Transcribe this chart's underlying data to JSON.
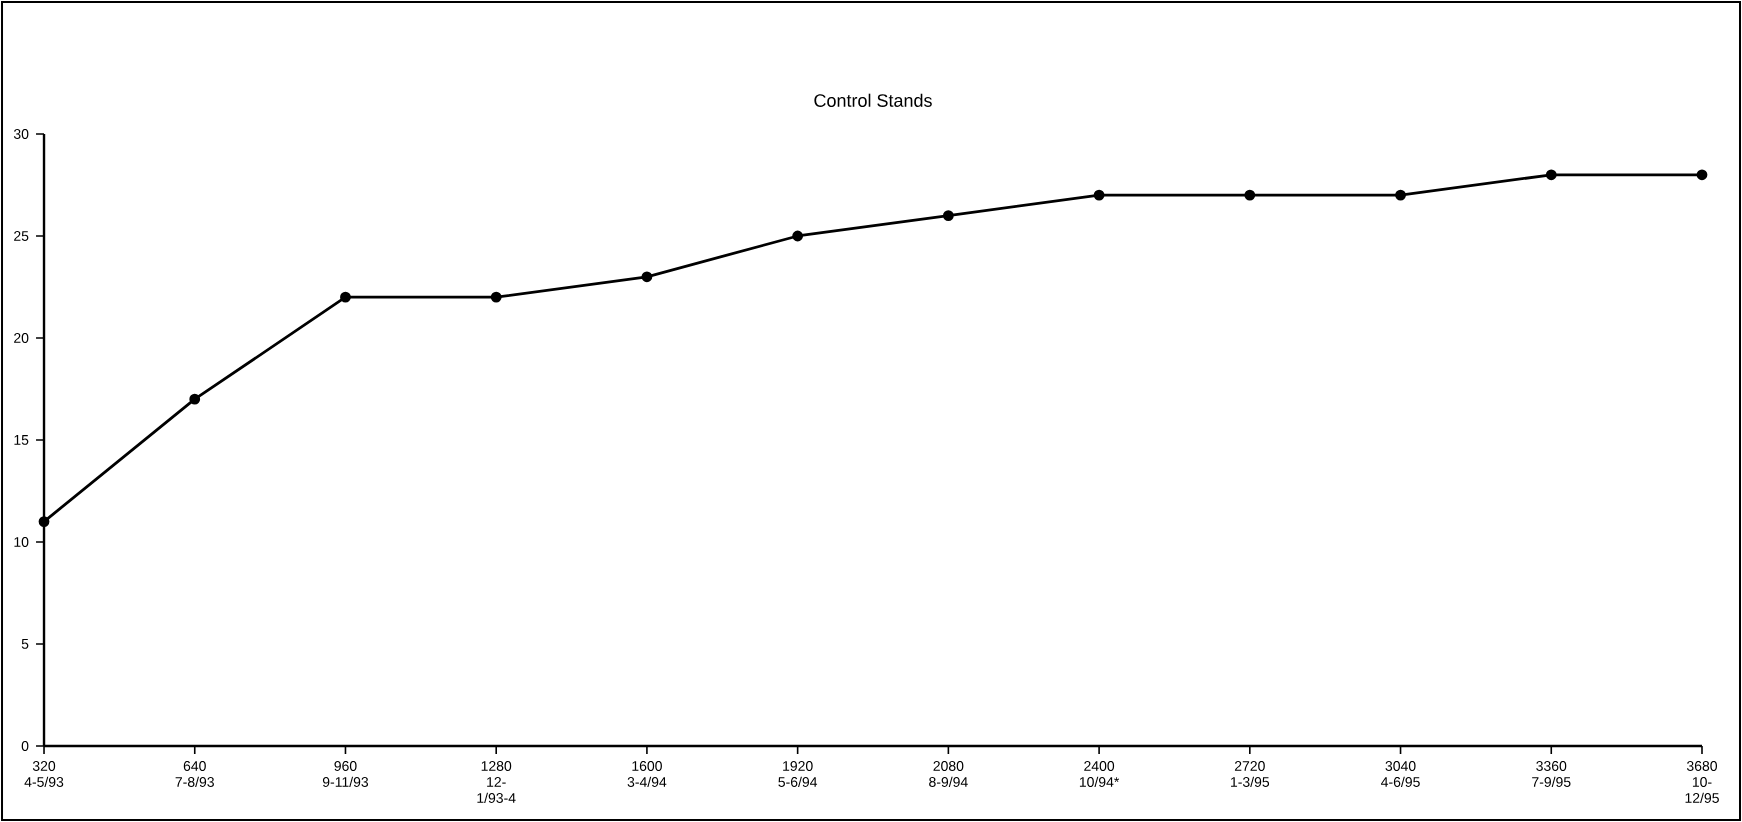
{
  "chart_data": {
    "type": "line",
    "title": "Control Stands",
    "categories": [
      "320 4-5/93",
      "640 7-8/93",
      "960 9-11/93",
      "1280 12-1/93-4",
      "1600 3-4/94",
      "1920 5-6/94",
      "2080 8-9/94",
      "2400 10/94*",
      "2720 1-3/95",
      "3040 4-6/95",
      "3360 7-9/95",
      "3680 10-12/95"
    ],
    "values": [
      11,
      17,
      22,
      22,
      23,
      25,
      26,
      27,
      27,
      27,
      28,
      28
    ],
    "color": "#000000",
    "marker": "circle",
    "line_style": "solid",
    "ylim": [
      0,
      30
    ],
    "yticks": [
      0,
      5,
      10,
      15,
      20,
      25,
      30
    ],
    "grid": false
  }
}
